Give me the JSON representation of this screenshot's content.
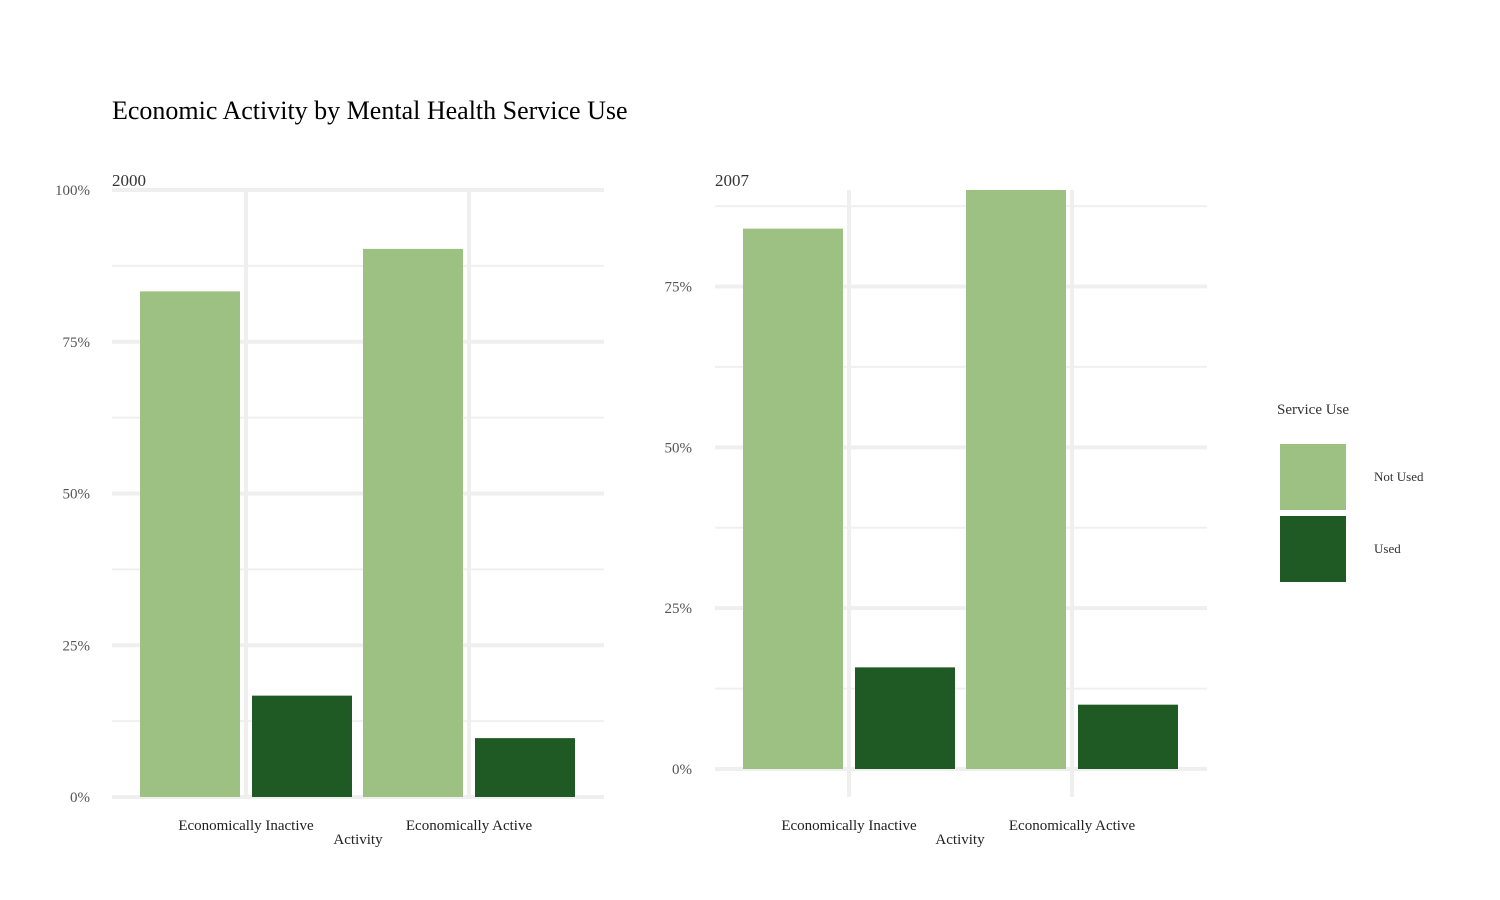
{
  "chart_data": {
    "type": "bar",
    "title": "Economic Activity by Mental Health Service Use",
    "xlabel": "Activity",
    "categories": [
      "Economically Inactive",
      "Economically Active"
    ],
    "legend": {
      "title": "Service Use",
      "placement": "right",
      "entries": [
        {
          "label": "Not Used",
          "color": "#9dc183"
        },
        {
          "label": "Used",
          "color": "#1f5a25"
        }
      ]
    },
    "panels": [
      {
        "title": "2000",
        "ylim": [
          0,
          1
        ],
        "yticks": [
          0,
          0.25,
          0.5,
          0.75,
          1.0
        ],
        "ytick_labels": [
          "0%",
          "25%",
          "50%",
          "75%",
          "100%"
        ],
        "series": [
          {
            "name": "Not Used",
            "values": [
              0.833,
              0.903
            ]
          },
          {
            "name": "Used",
            "values": [
              0.167,
              0.097
            ]
          }
        ]
      },
      {
        "title": "2007",
        "ylim": [
          0,
          0.9
        ],
        "yticks": [
          0,
          0.25,
          0.5,
          0.75
        ],
        "ytick_labels": [
          "0%",
          "25%",
          "50%",
          "75%"
        ],
        "series": [
          {
            "name": "Not Used",
            "values": [
              0.84,
              0.9
            ]
          },
          {
            "name": "Used",
            "values": [
              0.158,
              0.1
            ]
          }
        ]
      }
    ],
    "grid": true
  }
}
